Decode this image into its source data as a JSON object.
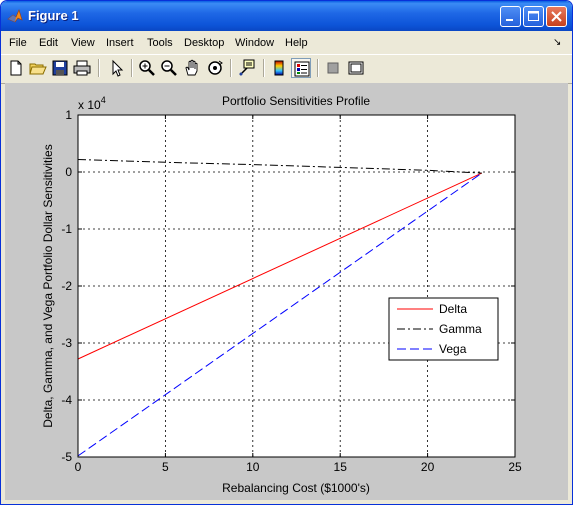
{
  "window": {
    "title": "Figure 1"
  },
  "menu": {
    "items": [
      "File",
      "Edit",
      "View",
      "Insert",
      "Tools",
      "Desktop",
      "Window",
      "Help"
    ]
  },
  "toolbar": {
    "buttons": [
      "new-file-icon",
      "open-folder-icon",
      "save-icon",
      "print-icon",
      "pointer-icon",
      "zoom-in-icon",
      "zoom-out-icon",
      "pan-hand-icon",
      "rotate-3d-icon",
      "data-cursor-icon",
      "colorbar-icon",
      "legend-icon",
      "hide-plot-tools-icon",
      "show-plot-tools-icon"
    ]
  },
  "chart_data": {
    "type": "line",
    "title": "Portfolio Sensitivities Profile",
    "xlabel": "Rebalancing Cost ($1000's)",
    "ylabel": "Delta, Gamma, and Vega Portfolio Dollar Sensitivities",
    "exponent_label": "x 10",
    "exponent_power": "4",
    "xlim": [
      0,
      25
    ],
    "ylim": [
      -5,
      1
    ],
    "xticks": [
      "0",
      "5",
      "10",
      "15",
      "20",
      "25"
    ],
    "yticks": [
      "-5",
      "-4",
      "-3",
      "-2",
      "-1",
      "0",
      "1"
    ],
    "grid": true,
    "legend_position": "right-center",
    "series": [
      {
        "name": "Delta",
        "color": "#ff0000",
        "style": "solid",
        "x": [
          0,
          23.1
        ],
        "y": [
          -3.28,
          -0.02
        ]
      },
      {
        "name": "Gamma",
        "color": "#000000",
        "style": "dashdot",
        "x": [
          0,
          5,
          10,
          15,
          20,
          23.1
        ],
        "y": [
          0.22,
          0.17,
          0.13,
          0.08,
          0.03,
          -0.02
        ]
      },
      {
        "name": "Vega",
        "color": "#0000ff",
        "style": "dashed",
        "x": [
          0,
          23.1
        ],
        "y": [
          -4.98,
          -0.02
        ]
      }
    ]
  }
}
